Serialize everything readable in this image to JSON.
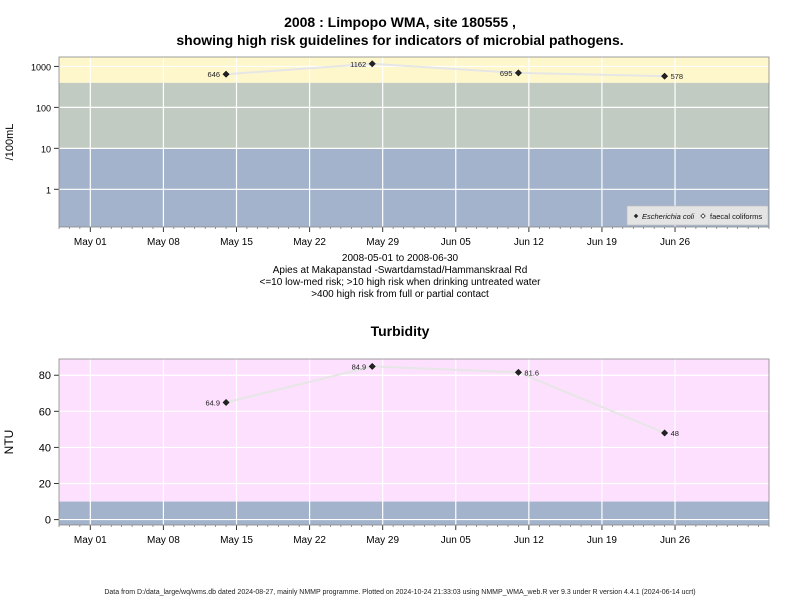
{
  "chart1": {
    "title_line1": "2008 : Limpopo WMA, site 180555 ,",
    "title_line2": "showing high risk guidelines for indicators of microbial pathogens.",
    "ylabel": "/100mL",
    "xlabel_lines": [
      "2008-05-01 to 2008-06-30",
      "Apies at Makapanstad -Swartdamstad/Hammanskraal Rd",
      "<=10 low-med risk; >10 high risk when drinking untreated water",
      ">400 high risk from full or partial contact"
    ],
    "legend": [
      "Escherichia coli",
      "faecal coliforms"
    ],
    "colors": {
      "low": "#a3b3cb",
      "mid": "#c2cbc2",
      "high": "#fef7cb",
      "line": "#e6e6e6",
      "grid": "#ffffff"
    }
  },
  "chart2": {
    "title": "Turbidity",
    "ylabel": "NTU",
    "colors": {
      "bg": "#fde0fd",
      "low": "#a3b3cb",
      "line": "#e6e6e6",
      "grid": "#ffffff"
    }
  },
  "footer": "Data from D:/data_large/wq/wms.db dated 2024-08-27, mainly NMMP programme. Plotted on 2024-10-24 21:33:03 using NMMP_WMA_web.R ver 9.3 under R version 4.4.1 (2024-06-14 ucrt)",
  "chart_data": [
    {
      "type": "line",
      "title": "2008 : Limpopo WMA, site 180555 , showing high risk guidelines for indicators of microbial pathogens.",
      "ylabel": "/100mL",
      "yscale": "log",
      "ylim": [
        0.12,
        1700
      ],
      "yticks": [
        1,
        10,
        100,
        1000
      ],
      "xticks": [
        "May 01",
        "May 08",
        "May 15",
        "May 22",
        "May 29",
        "Jun 05",
        "Jun 12",
        "Jun 19",
        "Jun 26"
      ],
      "xlim": [
        "2008-04-28",
        "2008-07-05"
      ],
      "bands": [
        {
          "from": 0.12,
          "to": 10,
          "label": "low-med risk"
        },
        {
          "from": 10,
          "to": 400,
          "label": "high risk when drinking untreated water"
        },
        {
          "from": 400,
          "to": 1700,
          "label": "high risk from full or partial contact"
        }
      ],
      "series": [
        {
          "name": "Escherichia coli",
          "x": [
            "2008-05-14",
            "2008-05-28",
            "2008-06-11",
            "2008-06-25"
          ],
          "values": [
            646,
            1162,
            695,
            578
          ],
          "labels": [
            "646",
            "1162",
            "695",
            "578"
          ]
        }
      ],
      "legend_position": "bottom-right",
      "grid": true
    },
    {
      "type": "line",
      "title": "Turbidity",
      "ylabel": "NTU",
      "ylim": [
        -3,
        89
      ],
      "yticks": [
        0,
        20,
        40,
        60,
        80
      ],
      "xticks": [
        "May 01",
        "May 08",
        "May 15",
        "May 22",
        "May 29",
        "Jun 05",
        "Jun 12",
        "Jun 19",
        "Jun 26"
      ],
      "xlim": [
        "2008-04-28",
        "2008-07-05"
      ],
      "bands": [
        {
          "from": -3,
          "to": 10
        },
        {
          "from": 10,
          "to": 89
        }
      ],
      "series": [
        {
          "x": [
            "2008-05-14",
            "2008-05-28",
            "2008-06-11",
            "2008-06-25"
          ],
          "values": [
            64.9,
            84.9,
            81.6,
            48
          ],
          "labels": [
            "64.9",
            "84.9",
            "81.6",
            "48"
          ]
        }
      ],
      "grid": true
    }
  ]
}
